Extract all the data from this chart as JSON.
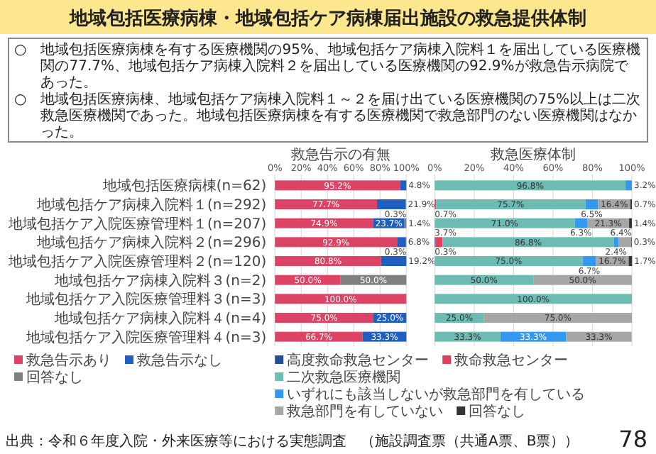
{
  "chart_data": [
    {
      "type": "bar",
      "orientation": "horizontal",
      "stacked": true,
      "title": "救急告示の有無",
      "annotations": [
        "地域包括医療病棟・地域包括ケア病棟届出施設の救急提供体制",
        "○　地域包括医療病棟を有する医療機関の95%、地域包括ケア病棟入院料１を届出している医療機関の77.7%、地域包括ケア病棟入院料２を届出している医療機関の92.9%が救急告示病院であった。",
        "○　地域包括医療病棟、地域包括ケア病棟入院料１～２を届け出ている医療機関の75%以上は二次救急医療機関であった。地域包括医療病棟を有する医療機関で救急部門のない医療機関はなかった。",
        "出典：令和６年度入院・外来医療等における実態調査　（施設調査票（共通A票、B票））",
        "78"
      ],
      "categories": [
        "地域包括医療病棟(n=62)",
        "地域包括ケア病棟入院料１(n=292)",
        "地域包括ケア入院医療管理料１(n=207)",
        "地域包括ケア病棟入院料２(n=296)",
        "地域包括ケア入院医療管理料２(n=120)",
        "地域包括ケア病棟入院料３(n=2)",
        "地域包括ケア入院医療管理料３(n=3)",
        "地域包括ケア病棟入院料４(n=4)",
        "地域包括ケア入院医療管理料４(n=3)"
      ],
      "xlim": [
        0,
        100
      ],
      "xticks": [
        {
          "value": 0,
          "label": "0%"
        },
        {
          "value": 20,
          "label": "20%"
        },
        {
          "value": 40,
          "label": "40%"
        },
        {
          "value": 60,
          "label": "60%"
        },
        {
          "value": 80,
          "label": "80%"
        },
        {
          "value": 100,
          "label": "100%"
        }
      ],
      "grid": "x",
      "legend": "bottom",
      "series": [
        {
          "name": "救急告示あり",
          "color": "#dc4364",
          "values": [
            95.2,
            77.7,
            74.9,
            92.9,
            80.8,
            50.0,
            100.0,
            75.0,
            66.7
          ],
          "value_labels": [
            "95.2%",
            "77.7%",
            "74.9%",
            "92.9%",
            "80.8%",
            "50.0%",
            "100.0%",
            "75.0%",
            "66.7%"
          ]
        },
        {
          "name": "救急告示なし",
          "color": "#1f5fbf",
          "values": [
            4.8,
            21.9,
            23.7,
            6.8,
            19.2,
            0,
            0,
            25.0,
            33.3
          ],
          "value_labels": [
            "4.8%",
            "21.9%",
            "23.7%",
            "6.8%",
            "19.2%",
            null,
            null,
            "25.0%",
            "33.3%"
          ]
        },
        {
          "name": "回答なし",
          "color": "#808080",
          "values": [
            0,
            0.3,
            1.4,
            0.3,
            0,
            50.0,
            0,
            0,
            0
          ],
          "value_labels": [
            null,
            "0.3%",
            "1.4%",
            "0.3%",
            null,
            "50.0%",
            null,
            null,
            null
          ]
        }
      ]
    },
    {
      "type": "bar",
      "orientation": "horizontal",
      "stacked": true,
      "title": "救急医療体制",
      "tick_labels": "x",
      "categories": [
        null,
        null,
        null,
        null,
        null,
        null,
        null,
        null,
        null
      ],
      "xlim": [
        0,
        100
      ],
      "xticks": [
        {
          "value": 0,
          "label": "0%"
        },
        {
          "value": 20,
          "label": "20%"
        },
        {
          "value": 40,
          "label": "40%"
        },
        {
          "value": 60,
          "label": "60%"
        },
        {
          "value": 80,
          "label": "80%"
        },
        {
          "value": 100,
          "label": "100%"
        }
      ],
      "grid": "x",
      "legend": "bottom",
      "series": [
        {
          "name": "高度救命救急センター",
          "color": "#1f4e99",
          "values": [
            0,
            0,
            0,
            0.3,
            0,
            0,
            0,
            0,
            0
          ],
          "value_labels": [
            null,
            null,
            null,
            "0.3%",
            null,
            null,
            null,
            null,
            null
          ]
        },
        {
          "name": "救命救急センター",
          "color": "#e0405e",
          "values": [
            0,
            0.7,
            0,
            3.7,
            0,
            0,
            0,
            0,
            0
          ],
          "value_labels": [
            null,
            "0.7%",
            null,
            "3.7%",
            null,
            null,
            null,
            null,
            null
          ]
        },
        {
          "name": "二次救急医療機関",
          "color": "#6cbcb4",
          "values": [
            96.8,
            75.7,
            71.0,
            86.8,
            75.0,
            50.0,
            100.0,
            25.0,
            33.3
          ],
          "value_labels": [
            "96.8%",
            "75.7%",
            "71.0%",
            "86.8%",
            "75.0%",
            "50.0%",
            "100.0%",
            "25.0%",
            "33.3%"
          ]
        },
        {
          "name": "いずれにも該当しないが救急部門を有している",
          "color": "#3399ee",
          "values": [
            3.2,
            6.5,
            6.3,
            2.4,
            6.7,
            0,
            0,
            0,
            33.3
          ],
          "value_labels": [
            "3.2%",
            "6.5%",
            "6.3%",
            "2.4%",
            "6.7%",
            null,
            null,
            null,
            "33.3%"
          ]
        },
        {
          "name": "救急部門を有していない",
          "color": "#a6a6a6",
          "values": [
            0,
            16.4,
            21.3,
            6.4,
            16.7,
            50.0,
            0,
            75.0,
            33.3
          ],
          "value_labels": [
            null,
            "16.4%",
            "21.3%",
            "6.4%",
            "16.7%",
            "50.0%",
            null,
            "75.0%",
            "33.3%"
          ]
        },
        {
          "name": "回答なし",
          "color": "#333333",
          "values": [
            0,
            0.7,
            1.4,
            0.3,
            1.7,
            0,
            0,
            0,
            0
          ],
          "value_labels": [
            null,
            "0.7%",
            "1.4%",
            "0.3%",
            "1.7%",
            null,
            null,
            null,
            null
          ]
        }
      ]
    }
  ]
}
